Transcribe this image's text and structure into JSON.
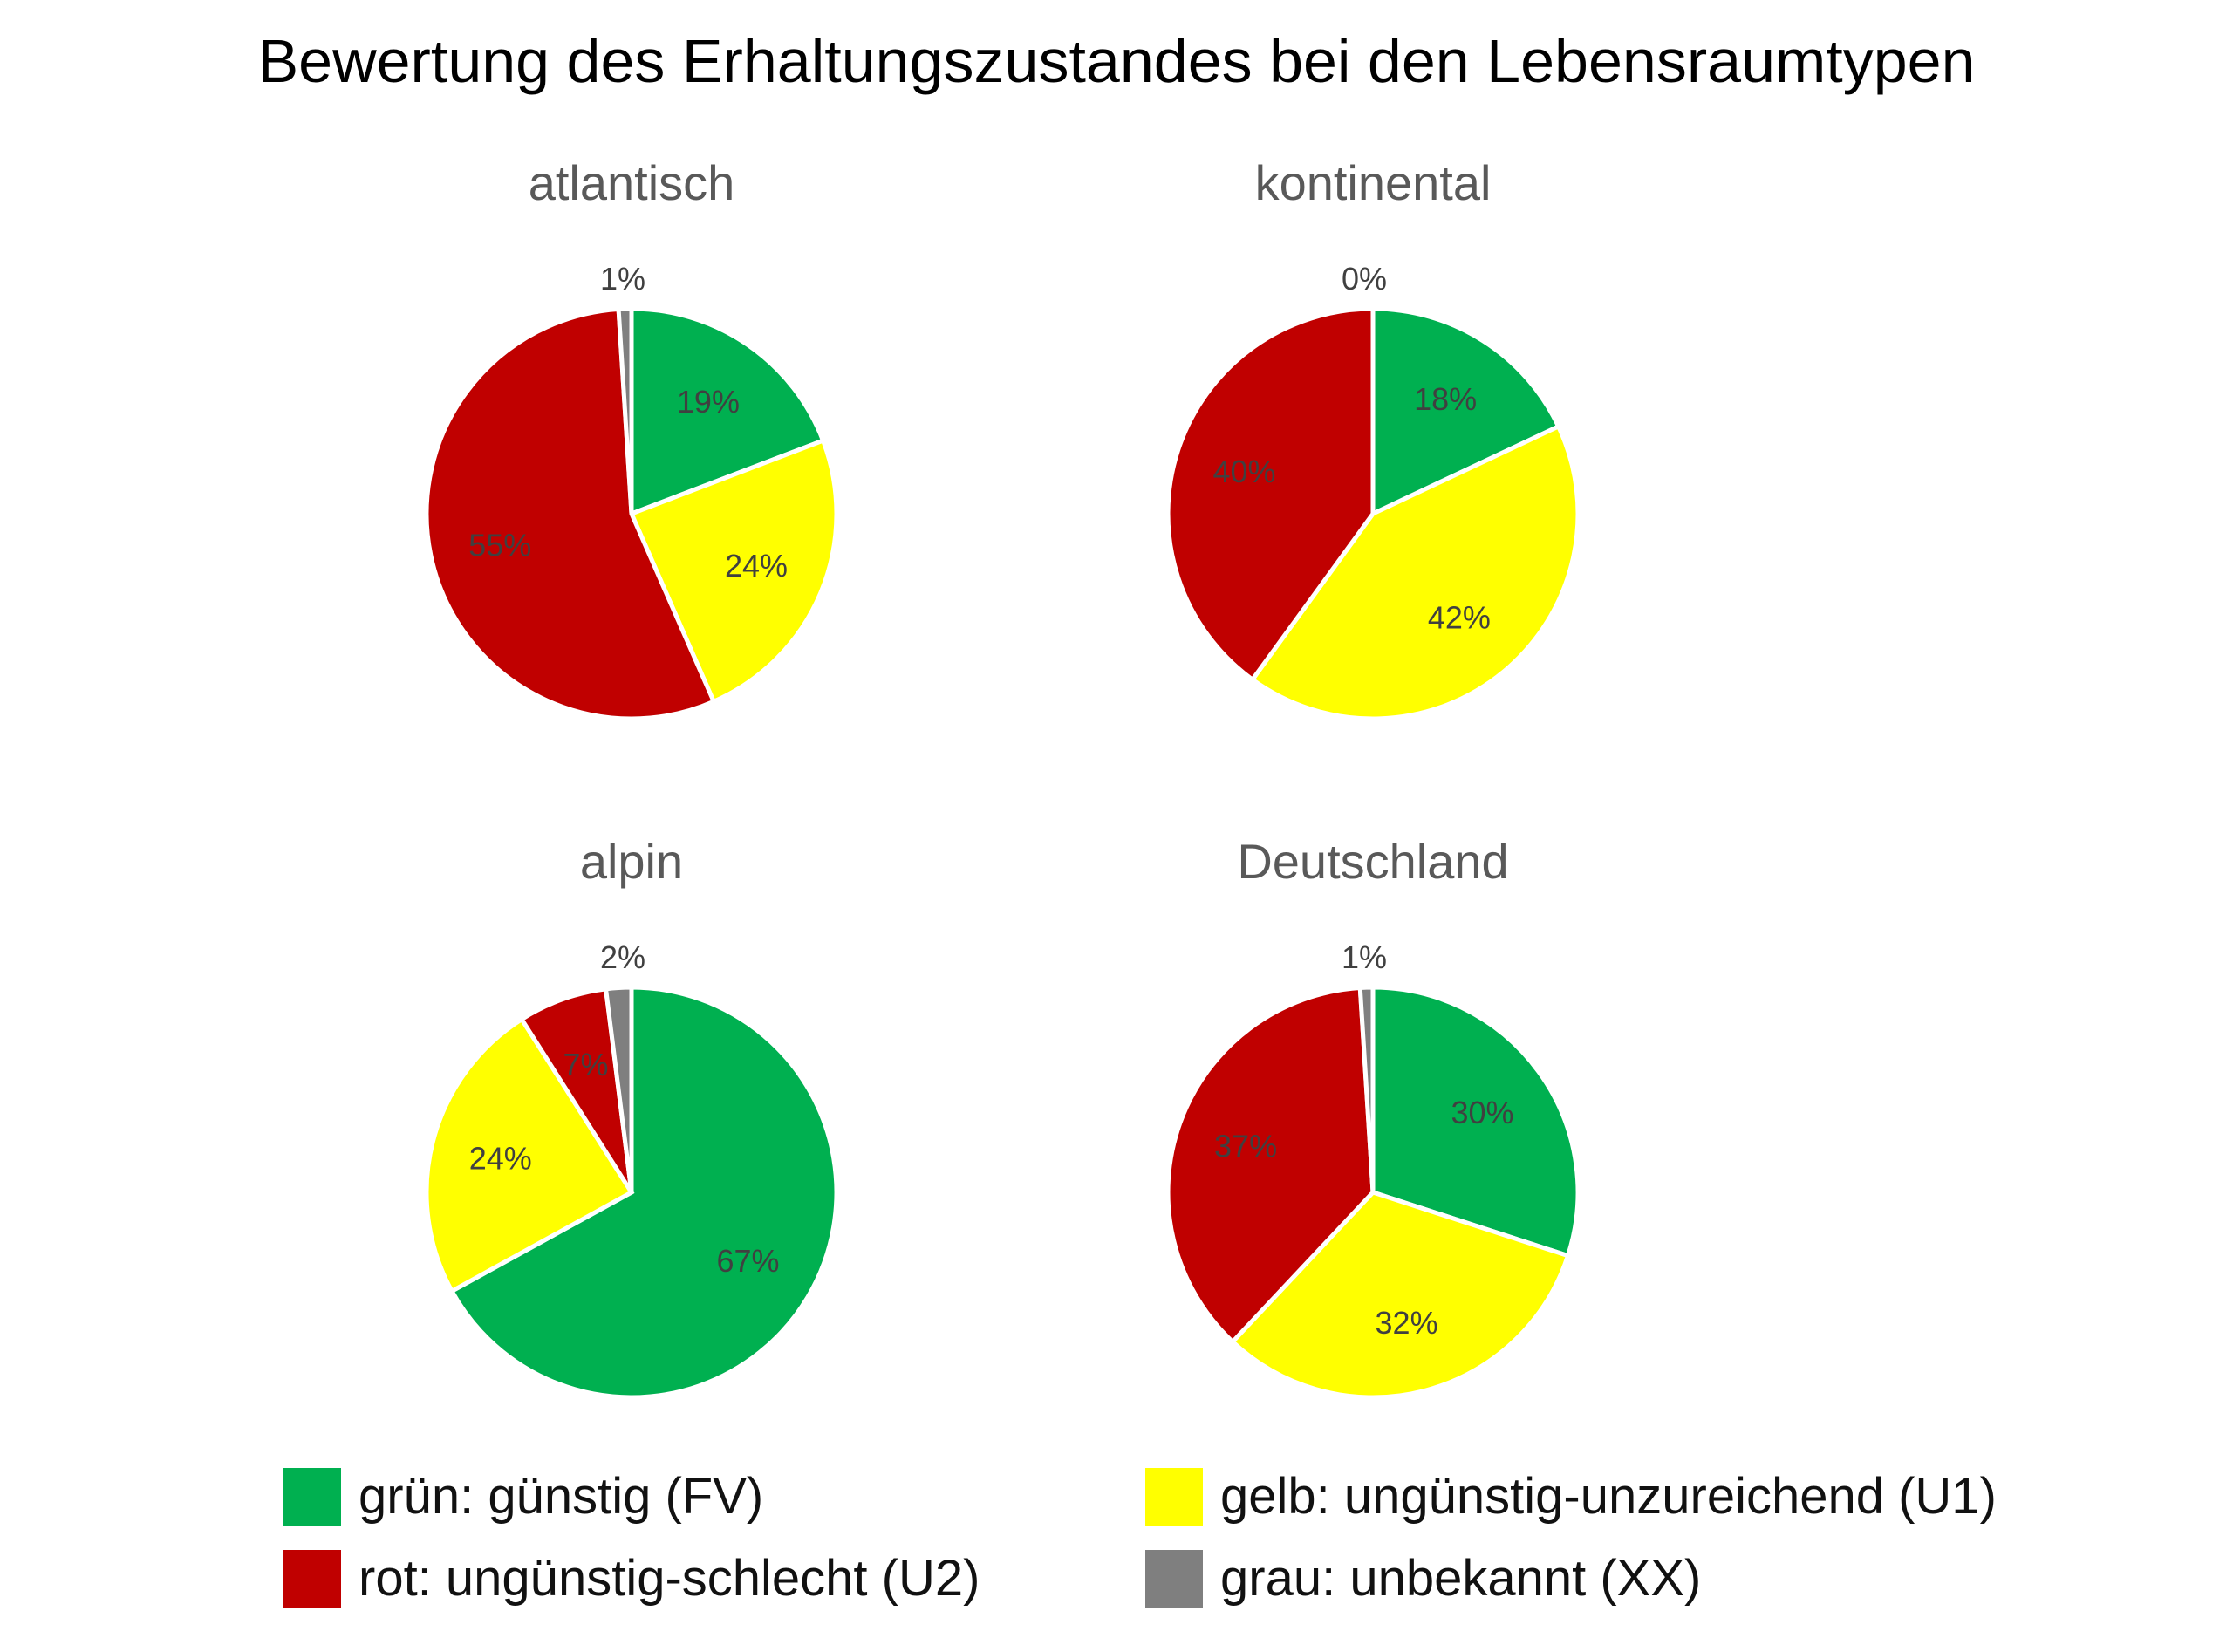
{
  "chart_data": {
    "type": "pie",
    "title": "Bewertung des Erhaltungszustandes bei den Lebensraumtypen",
    "categories": [
      "grün: günstig (FV)",
      "gelb: ungünstig-unzureichend (U1)",
      "rot: ungünstig-schlecht (U2)",
      "grau: unbekannt (XX)"
    ],
    "colors": [
      "#00B050",
      "#FFFF00",
      "#C00000",
      "#7F7F7F"
    ],
    "legend_position": "bottom",
    "charts": [
      {
        "title": "atlantisch",
        "values": [
          19,
          24,
          55,
          1
        ],
        "labels": [
          "19%",
          "24%",
          "55%",
          "1%"
        ]
      },
      {
        "title": "kontinental",
        "values": [
          18,
          42,
          40,
          0
        ],
        "labels": [
          "18%",
          "42%",
          "40%",
          "0%"
        ]
      },
      {
        "title": "alpin",
        "values": [
          67,
          24,
          7,
          2
        ],
        "labels": [
          "67%",
          "24%",
          "7%",
          "2%"
        ]
      },
      {
        "title": "Deutschland",
        "values": [
          30,
          32,
          37,
          1
        ],
        "labels": [
          "30%",
          "32%",
          "37%",
          "1%"
        ]
      }
    ]
  }
}
